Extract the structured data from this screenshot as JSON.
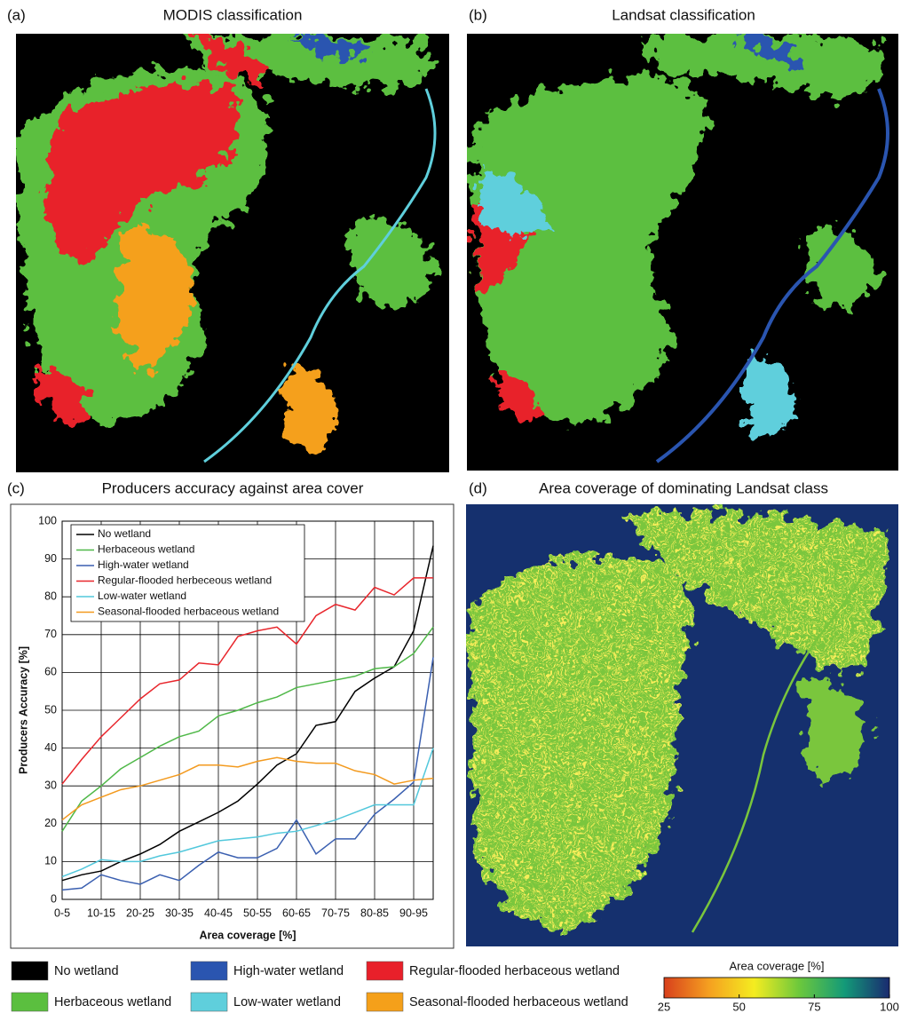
{
  "panels": {
    "a": {
      "label": "(a)",
      "title": "MODIS classification"
    },
    "b": {
      "label": "(b)",
      "title": "Landsat classification"
    },
    "c": {
      "label": "(c)"
    },
    "d": {
      "label": "(d)",
      "title": "Area coverage of dominating Landsat class"
    }
  },
  "chart_data": {
    "type": "line",
    "title": "Producers accuracy against area cover",
    "x_label": "Area coverage [%]",
    "y_label": "Producers Accuracy [%]",
    "categories": [
      "0-5",
      null,
      "10-15",
      null,
      "20-25",
      null,
      "30-35",
      null,
      "40-45",
      null,
      "50-55",
      null,
      "60-65",
      null,
      "70-75",
      null,
      "80-85",
      null,
      "90-95",
      null
    ],
    "ylim": [
      0,
      100
    ],
    "yticks": [
      0,
      10,
      20,
      30,
      40,
      50,
      60,
      70,
      80,
      90,
      100
    ],
    "grid": true,
    "legend": "upper-left",
    "series": [
      {
        "name": "No wetland",
        "color": "#000000",
        "values": [
          5,
          6.5,
          7.5,
          10,
          12,
          14.5,
          18,
          20.5,
          23,
          26,
          30.5,
          35.5,
          38.5,
          46,
          47,
          55,
          58.5,
          61.5,
          71,
          93.5
        ]
      },
      {
        "name": "Herbaceous wetland",
        "color": "#4fb848",
        "values": [
          18,
          26,
          30,
          34.5,
          37.5,
          40.5,
          43,
          44.5,
          48.5,
          50,
          52,
          53.5,
          56,
          57,
          58,
          59,
          61,
          61.5,
          65,
          72
        ]
      },
      {
        "name": "High-water wetland",
        "color": "#3a5fb0",
        "values": [
          2.5,
          3,
          6.5,
          5,
          4,
          6.5,
          5,
          9,
          12.5,
          11,
          11,
          13.5,
          21,
          12,
          16,
          16,
          22.5,
          26.5,
          31,
          64
        ]
      },
      {
        "name": "Regular-flooded herbeceous wetland",
        "color": "#e8262c",
        "values": [
          30.5,
          37,
          43,
          48,
          53,
          57,
          58,
          62.5,
          62,
          69.5,
          71,
          72,
          67.5,
          75,
          78,
          76.5,
          82.5,
          80.5,
          85,
          85
        ]
      },
      {
        "name": "Low-water wetland",
        "color": "#52c8dc",
        "values": [
          6,
          8,
          10.5,
          10,
          10,
          11.5,
          12.5,
          14,
          15.5,
          16,
          16.5,
          17.5,
          18,
          19.5,
          21,
          23,
          25,
          25,
          25,
          40
        ]
      },
      {
        "name": "Seasonal-flooded herbaceous wetland",
        "color": "#f39a1e",
        "values": [
          21,
          25,
          27,
          29,
          30,
          31.5,
          33,
          35.5,
          35.5,
          35,
          36.5,
          37.5,
          36.5,
          36,
          36,
          34,
          33,
          30.5,
          31.5,
          32
        ]
      }
    ]
  },
  "legend": [
    {
      "label": "No wetland",
      "color": "#000000"
    },
    {
      "label": "Herbaceous wetland",
      "color": "#5bbf3f"
    },
    {
      "label": "High-water wetland",
      "color": "#2a55b0"
    },
    {
      "label": "Low-water wetland",
      "color": "#5fcfdc"
    },
    {
      "label": "Regular-flooded herbaceous wetland",
      "color": "#e8202a"
    },
    {
      "label": "Seasonal-flooded herbaceous wetland",
      "color": "#f5a01a"
    }
  ],
  "colorbar": {
    "title": "Area coverage [%]",
    "lim": [
      25,
      100
    ],
    "ticks": [
      25,
      50,
      75,
      100
    ],
    "colors": [
      "#d8401c",
      "#f5a020",
      "#f4ec20",
      "#6cc83c",
      "#139a78",
      "#1a2a70"
    ]
  }
}
